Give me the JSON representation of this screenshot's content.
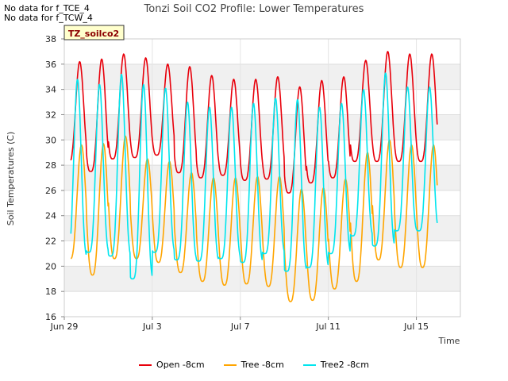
{
  "notes": [
    "No data for f_TCE_4",
    "No data for f_TCW_4"
  ],
  "chart_data": {
    "type": "line",
    "title": "Tonzi Soil CO2 Profile: Lower Temperatures",
    "xlabel": "Time",
    "ylabel": "Soil Temperatures (C)",
    "badge": "TZ_soilco2",
    "ylim": [
      16,
      38
    ],
    "yticks": [
      16,
      18,
      20,
      22,
      24,
      26,
      28,
      30,
      32,
      34,
      36,
      38
    ],
    "xlim": [
      0,
      18
    ],
    "xticks": [
      {
        "x": 0,
        "label": "Jun 29"
      },
      {
        "x": 4,
        "label": "Jul 3"
      },
      {
        "x": 8,
        "label": "Jul 7"
      },
      {
        "x": 12,
        "label": "Jul 11"
      },
      {
        "x": 16,
        "label": "Jul 15"
      }
    ],
    "grid": true,
    "banding": true,
    "days_start": 0.3,
    "days_end": 16.95,
    "series": [
      {
        "name": "Open -8cm",
        "color": "#e8000b",
        "peak_phase": 0.7,
        "sharpness": 1.6,
        "min": [
          28.2,
          27.5,
          28.5,
          28.6,
          28.8,
          27.4,
          27.0,
          27.2,
          26.8,
          26.9,
          25.8,
          26.6,
          27.0,
          28.3,
          28.3,
          28.3,
          28.3
        ],
        "max": [
          36.2,
          36.4,
          36.8,
          36.5,
          36.0,
          35.8,
          35.1,
          34.8,
          34.8,
          35.0,
          34.2,
          34.7,
          35.0,
          36.3,
          37.0,
          36.8,
          36.8
        ]
      },
      {
        "name": "Tree -8cm",
        "color": "#ffa500",
        "peak_phase": 0.78,
        "sharpness": 1.4,
        "min": [
          20.6,
          19.3,
          20.6,
          20.6,
          20.3,
          19.5,
          18.8,
          18.5,
          18.6,
          18.4,
          17.2,
          17.3,
          18.2,
          18.8,
          20.5,
          19.9,
          19.9
        ],
        "max": [
          29.6,
          29.7,
          30.3,
          28.5,
          28.3,
          27.4,
          27.0,
          27.0,
          27.1,
          27.1,
          26.1,
          26.2,
          26.9,
          29.0,
          30.0,
          29.6,
          29.6
        ]
      },
      {
        "name": "Tree2 -8cm",
        "color": "#00e5ee",
        "peak_phase": 0.6,
        "sharpness": 1.9,
        "min": [
          20.7,
          21.1,
          20.8,
          19.0,
          21.1,
          20.5,
          20.4,
          20.6,
          20.3,
          21.0,
          19.6,
          19.9,
          21.0,
          22.4,
          21.6,
          22.8,
          22.8
        ],
        "max": [
          34.8,
          34.4,
          35.2,
          34.4,
          34.1,
          33.0,
          32.6,
          32.6,
          32.9,
          33.3,
          33.2,
          32.6,
          32.9,
          34.0,
          35.3,
          34.2,
          34.2
        ]
      }
    ]
  }
}
